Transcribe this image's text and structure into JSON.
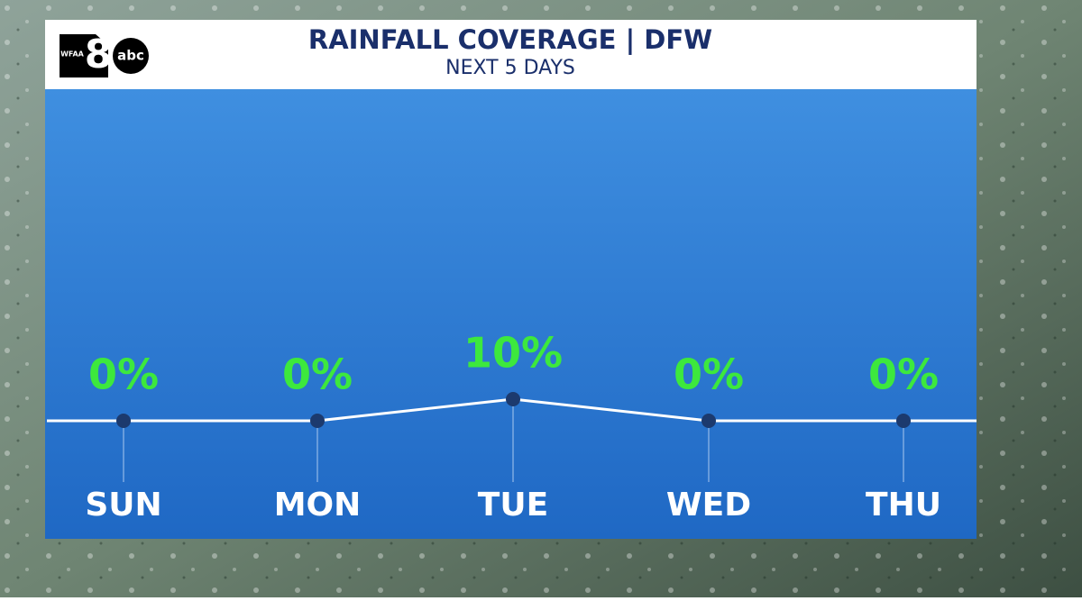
{
  "logo": {
    "station": "WFAA",
    "number": "8",
    "network": "abc"
  },
  "chart_data": {
    "type": "line",
    "title": "RAINFALL COVERAGE | DFW",
    "subtitle": "NEXT 5 DAYS",
    "categories": [
      "SUN",
      "MON",
      "TUE",
      "WED",
      "THU"
    ],
    "values": [
      0,
      0,
      10,
      0,
      0
    ],
    "value_labels": [
      "0%",
      "0%",
      "10%",
      "0%",
      "0%"
    ],
    "color": "#ffffff",
    "marker_color": "#1c3a6e",
    "label_color": "#3de83d"
  }
}
